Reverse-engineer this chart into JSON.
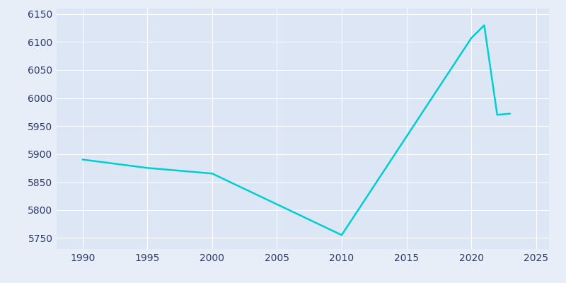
{
  "years": [
    1990,
    1995,
    2000,
    2010,
    2020,
    2021,
    2022,
    2023
  ],
  "population": [
    5890,
    5875,
    5865,
    5755,
    6107,
    6130,
    5970,
    5972
  ],
  "line_color": "#00CED1",
  "background_color": "#e8eef7",
  "plot_bg_color": "#dce6f5",
  "text_color": "#2b3a6b",
  "xlim": [
    1988,
    2026
  ],
  "ylim": [
    5730,
    6160
  ],
  "yticks": [
    5750,
    5800,
    5850,
    5900,
    5950,
    6000,
    6050,
    6100,
    6150
  ],
  "xticks": [
    1990,
    1995,
    2000,
    2005,
    2010,
    2015,
    2020,
    2025
  ],
  "line_width": 1.8,
  "figsize": [
    8.0,
    4.0
  ],
  "dpi": 100
}
